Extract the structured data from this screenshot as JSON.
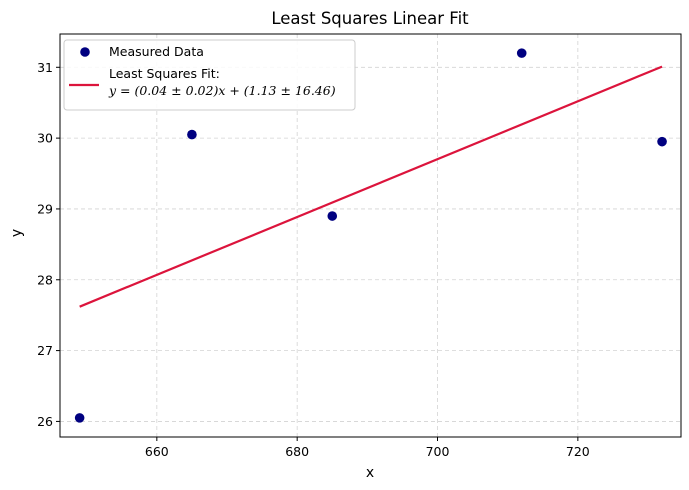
{
  "chart_data": {
    "type": "scatter",
    "title": "Least Squares Linear Fit",
    "xlabel": "x",
    "ylabel": "y",
    "xlim": [
      646.2,
      734.7
    ],
    "ylim": [
      25.78,
      31.47
    ],
    "xticks": [
      660,
      680,
      700,
      720
    ],
    "yticks": [
      26,
      27,
      28,
      29,
      30,
      31
    ],
    "grid": true,
    "legend_position": "top-left",
    "series": [
      {
        "name": "Measured Data",
        "kind": "scatter",
        "color": "#000080",
        "x": [
          649,
          665,
          685,
          712,
          732
        ],
        "y": [
          26.05,
          30.05,
          28.9,
          31.2,
          29.95
        ]
      },
      {
        "name": "Least Squares Fit:",
        "equation": "y = (0.04 ± 0.02)x + (1.13 ± 16.46)",
        "kind": "line",
        "color": "#dc143c",
        "x": [
          649,
          732
        ],
        "y": [
          27.62,
          31.01
        ]
      }
    ]
  }
}
